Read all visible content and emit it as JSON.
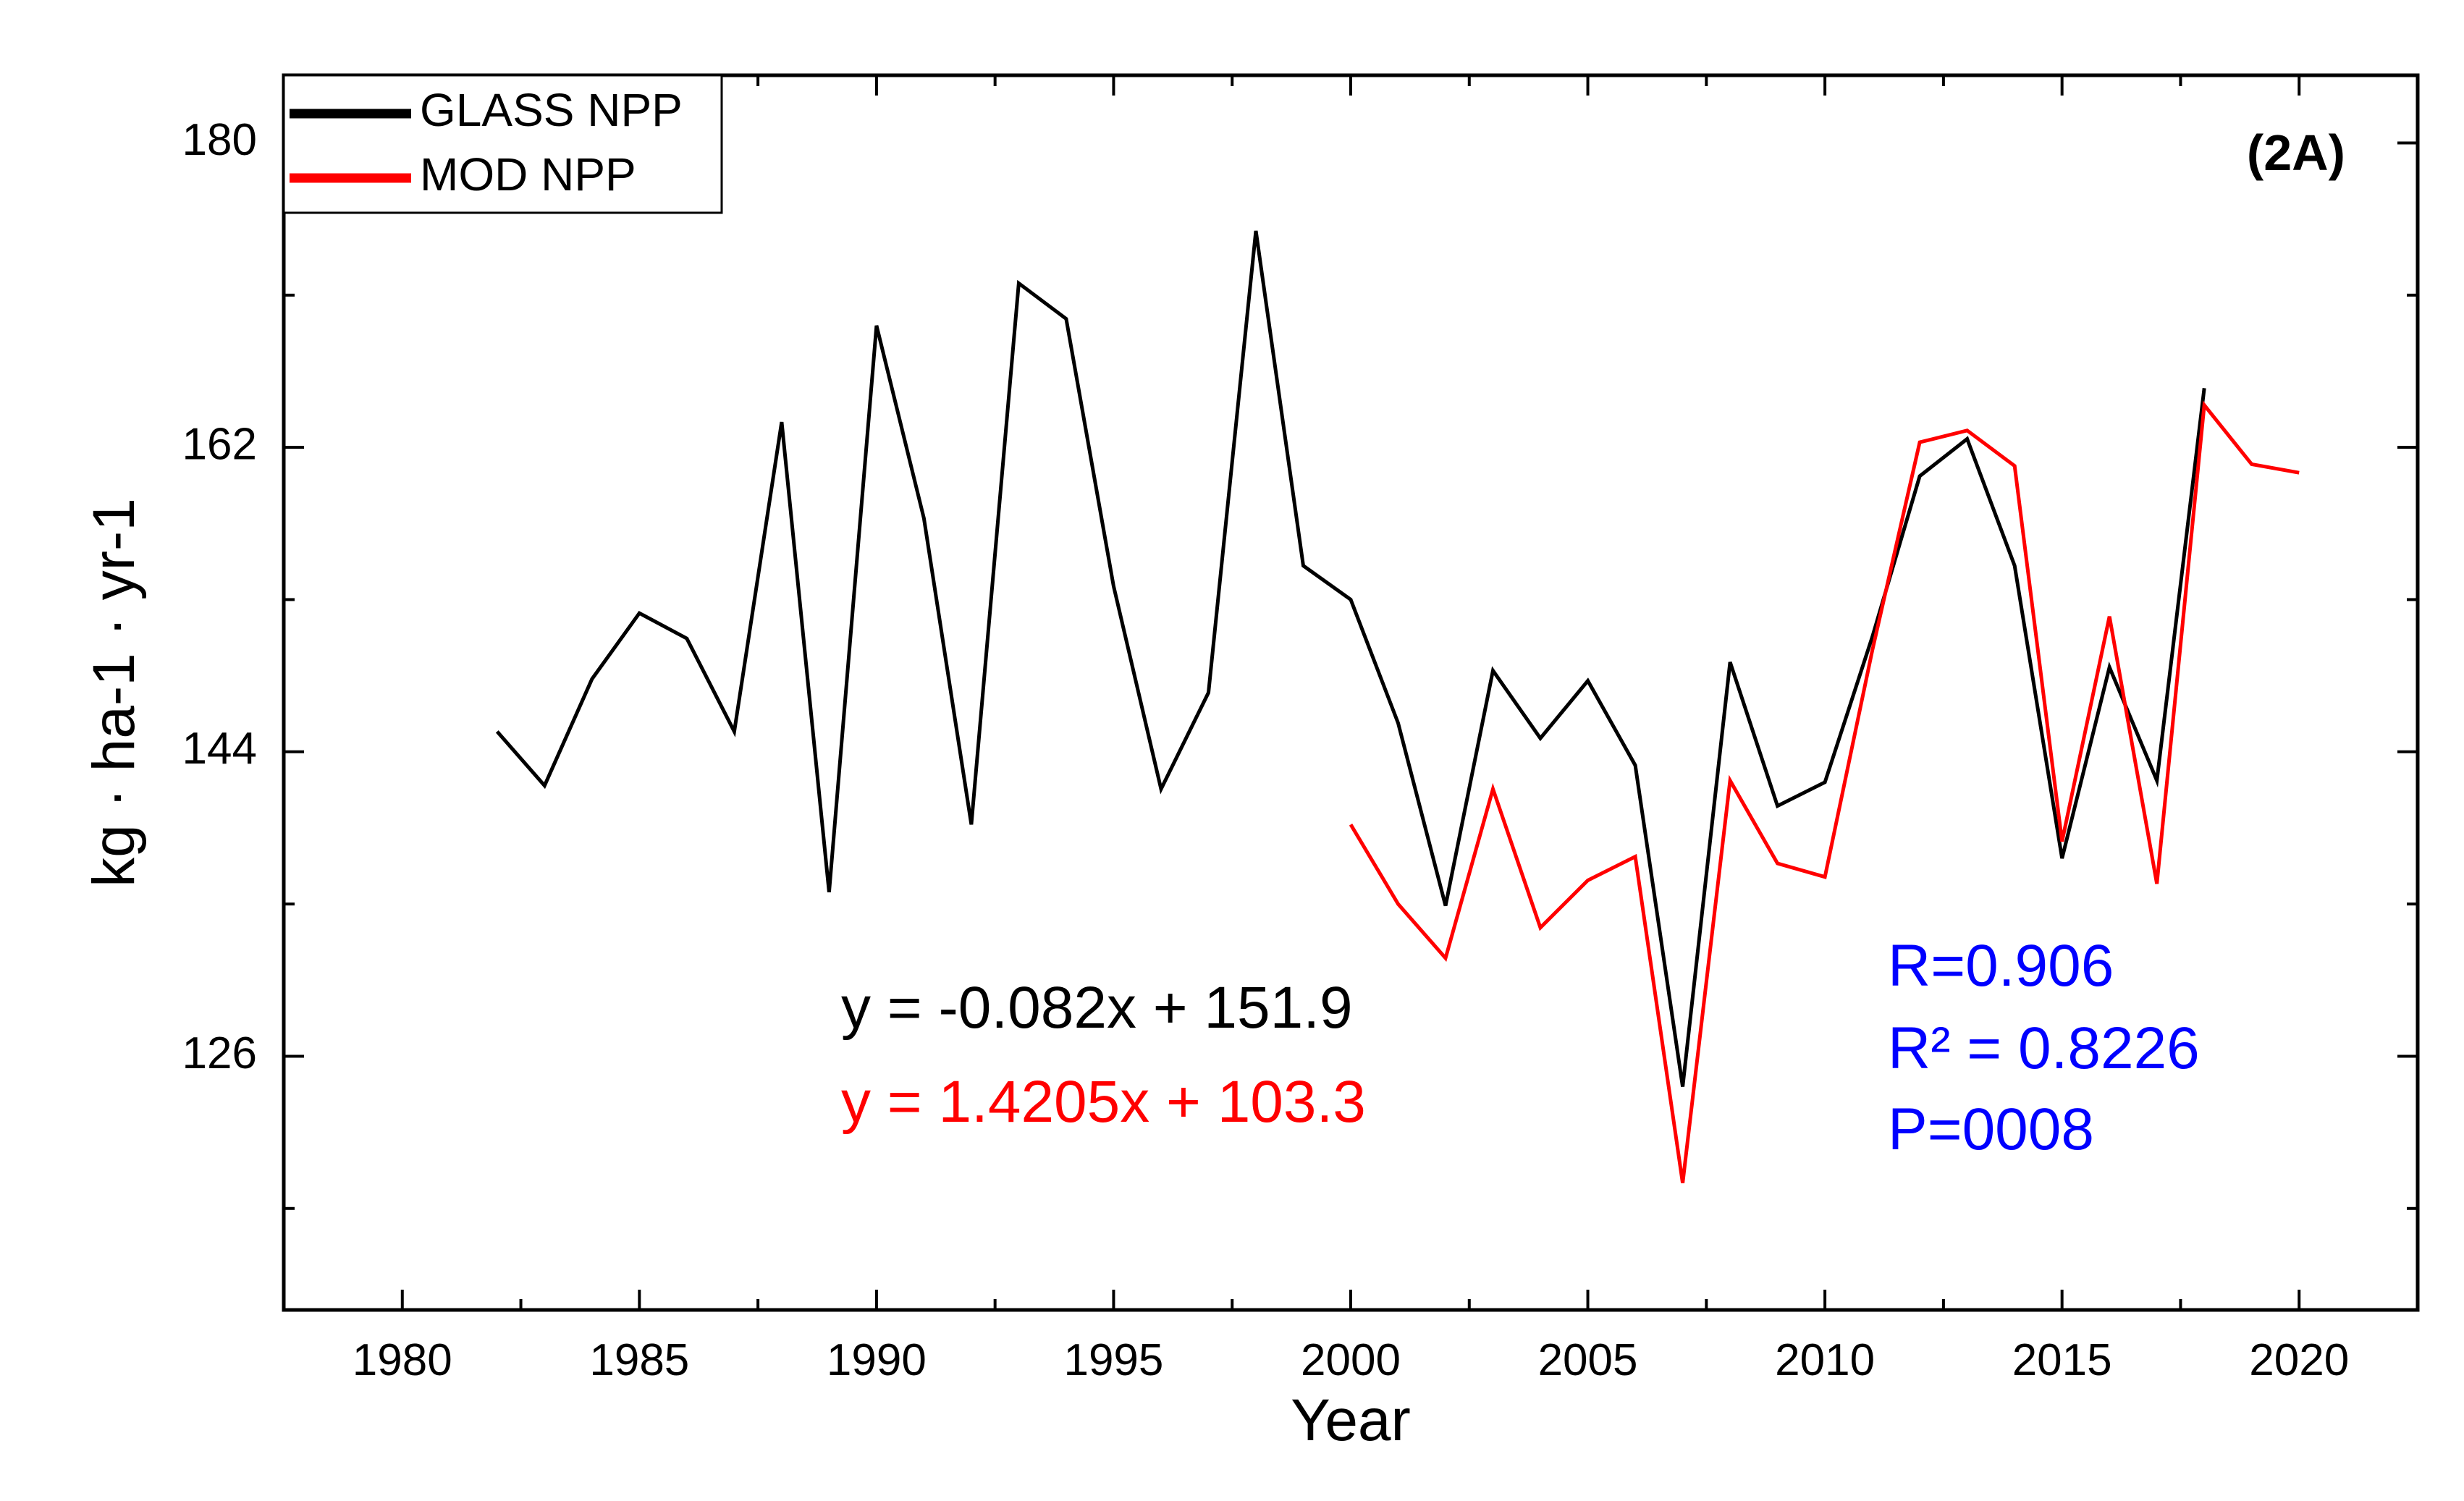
{
  "chart_data": {
    "type": "line",
    "panel_label": "(2A)",
    "xlabel": "Year",
    "ylabel": "kg · ha-1 · yr-1",
    "xlim": [
      1977.5,
      2022.5
    ],
    "ylim": [
      111,
      184
    ],
    "xticks": [
      1980,
      1985,
      1990,
      1995,
      2000,
      2005,
      2010,
      2015,
      2020
    ],
    "yticks": [
      126,
      144,
      162,
      180
    ],
    "grid": false,
    "legend_position": "top-left",
    "series": [
      {
        "name": "GLASS NPP",
        "color": "#000000",
        "x": [
          1982,
          1983,
          1984,
          1985,
          1986,
          1987,
          1988,
          1989,
          1990,
          1991,
          1992,
          1993,
          1994,
          1995,
          1996,
          1997,
          1998,
          1999,
          2000,
          2001,
          2002,
          2003,
          2004,
          2005,
          2006,
          2007,
          2008,
          2009,
          2010,
          2011,
          2012,
          2013,
          2014,
          2015,
          2016,
          2017,
          2018
        ],
        "values": [
          145.2,
          142.0,
          148.3,
          152.2,
          150.7,
          145.2,
          163.5,
          135.7,
          169.2,
          157.8,
          139.7,
          171.7,
          169.6,
          153.8,
          141.8,
          147.5,
          174.8,
          155.0,
          153.0,
          145.7,
          134.9,
          148.8,
          144.8,
          148.2,
          143.2,
          124.2,
          149.3,
          140.8,
          142.2,
          150.8,
          160.3,
          162.5,
          155.0,
          137.7,
          149.0,
          142.3,
          165.5
        ]
      },
      {
        "name": "MOD NPP",
        "color": "#ff0000",
        "x": [
          2000,
          2001,
          2002,
          2003,
          2004,
          2005,
          2006,
          2007,
          2008,
          2009,
          2010,
          2011,
          2012,
          2013,
          2014,
          2015,
          2016,
          2017,
          2018,
          2019,
          2020
        ],
        "values": [
          139.7,
          135.0,
          131.8,
          141.8,
          133.6,
          136.4,
          137.8,
          118.5,
          142.3,
          137.4,
          136.6,
          150.0,
          162.3,
          163.0,
          160.9,
          138.7,
          152.0,
          136.2,
          164.5,
          161.0,
          160.5
        ]
      }
    ],
    "annotations": {
      "glass_trend": "y = -0.082x + 151.9",
      "mod_trend": "y = 1.4205x + 103.3",
      "correlation_r": "R=0.906",
      "correlation_r2": "R² = 0.8226",
      "p_value": "P=0008"
    },
    "colors": {
      "glass": "#000000",
      "mod": "#ff0000",
      "stats": "#0000ff"
    }
  }
}
